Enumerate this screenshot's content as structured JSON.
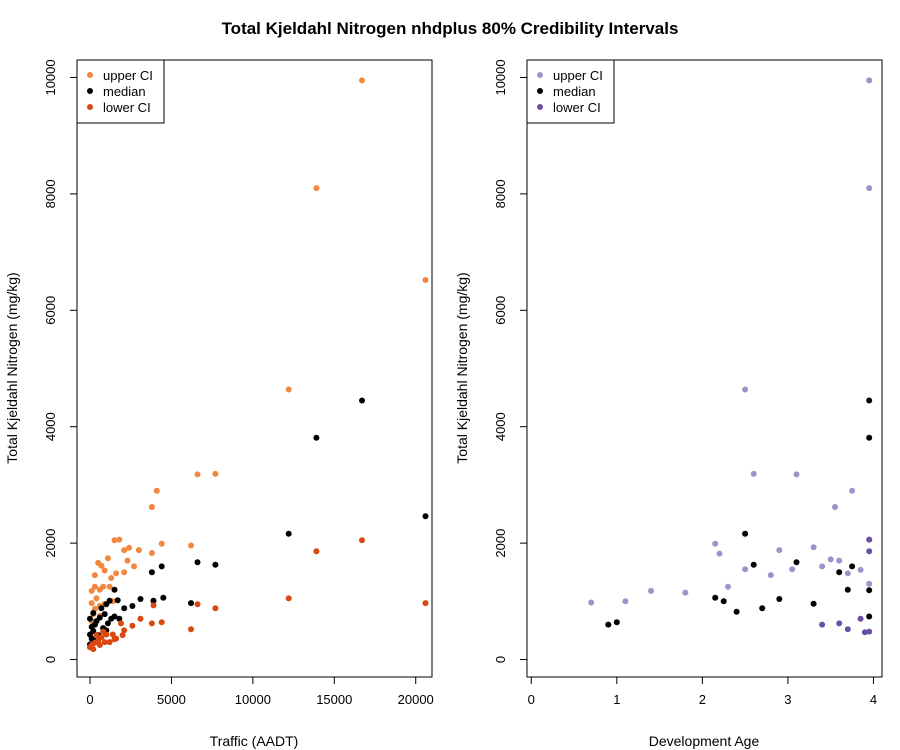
{
  "title": "Total Kjeldahl Nitrogen nhdplus 80% Credibility Intervals",
  "chart_data": [
    {
      "type": "scatter",
      "xlabel": "Traffic (AADT)",
      "ylabel": "Total Kjeldahl Nitrogen (mg/kg)",
      "xlim": [
        -800,
        21000
      ],
      "ylim": [
        -300,
        10300
      ],
      "xticks": [
        0,
        5000,
        10000,
        15000,
        20000
      ],
      "xtick_labels": [
        "0",
        "5000",
        "10000",
        "15000",
        "20000"
      ],
      "yticks": [
        0,
        2000,
        4000,
        6000,
        8000,
        10000
      ],
      "ytick_labels": [
        "0",
        "2000",
        "4000",
        "6000",
        "8000",
        "10000"
      ],
      "grid": false,
      "legend_position": "top-left",
      "series": [
        {
          "name": "upper CI",
          "color": "#f4873f",
          "points": [
            [
              16700,
              9950
            ],
            [
              13900,
              8100
            ],
            [
              20600,
              6520
            ],
            [
              12200,
              4640
            ],
            [
              7700,
              3190
            ],
            [
              6600,
              3180
            ],
            [
              4100,
              2900
            ],
            [
              3800,
              2620
            ],
            [
              4400,
              1990
            ],
            [
              6200,
              1960
            ],
            [
              3800,
              1830
            ],
            [
              3000,
              1880
            ],
            [
              2400,
              1920
            ],
            [
              2100,
              1880
            ],
            [
              1800,
              2060
            ],
            [
              1500,
              2050
            ],
            [
              2300,
              1700
            ],
            [
              2700,
              1600
            ],
            [
              2100,
              1500
            ],
            [
              1600,
              1480
            ],
            [
              1300,
              1400
            ],
            [
              900,
              1530
            ],
            [
              1100,
              1740
            ],
            [
              700,
              1610
            ],
            [
              500,
              1660
            ],
            [
              300,
              1450
            ],
            [
              800,
              1250
            ],
            [
              1200,
              1250
            ],
            [
              600,
              1200
            ],
            [
              300,
              1250
            ],
            [
              100,
              1180
            ],
            [
              400,
              1050
            ],
            [
              100,
              970
            ],
            [
              600,
              920
            ],
            [
              300,
              870
            ],
            [
              900,
              960
            ],
            [
              1400,
              1000
            ],
            [
              200,
              780
            ],
            [
              600,
              750
            ],
            [
              100,
              660
            ]
          ]
        },
        {
          "name": "median",
          "color": "#000000",
          "points": [
            [
              16700,
              4450
            ],
            [
              13900,
              3810
            ],
            [
              20600,
              2460
            ],
            [
              12200,
              2160
            ],
            [
              6600,
              1670
            ],
            [
              7700,
              1630
            ],
            [
              4400,
              1600
            ],
            [
              3800,
              1500
            ],
            [
              3900,
              1010
            ],
            [
              4500,
              1060
            ],
            [
              6200,
              970
            ],
            [
              3100,
              1040
            ],
            [
              2600,
              920
            ],
            [
              2100,
              880
            ],
            [
              1700,
              1020
            ],
            [
              1500,
              1200
            ],
            [
              1200,
              1010
            ],
            [
              1000,
              950
            ],
            [
              700,
              880
            ],
            [
              900,
              780
            ],
            [
              600,
              720
            ],
            [
              400,
              660
            ],
            [
              300,
              600
            ],
            [
              100,
              560
            ],
            [
              200,
              490
            ],
            [
              0,
              430
            ],
            [
              100,
              360
            ],
            [
              300,
              320
            ],
            [
              500,
              420
            ],
            [
              800,
              540
            ],
            [
              1100,
              620
            ],
            [
              1300,
              700
            ],
            [
              1500,
              740
            ],
            [
              1800,
              700
            ],
            [
              0,
              260
            ],
            [
              200,
              800
            ],
            [
              0,
              700
            ],
            [
              1000,
              500
            ]
          ]
        },
        {
          "name": "lower CI",
          "color": "#d9480f",
          "points": [
            [
              16700,
              2050
            ],
            [
              13900,
              1860
            ],
            [
              20600,
              970
            ],
            [
              12200,
              1050
            ],
            [
              7700,
              880
            ],
            [
              6600,
              950
            ],
            [
              6200,
              520
            ],
            [
              4400,
              640
            ],
            [
              3800,
              620
            ],
            [
              3900,
              930
            ],
            [
              3100,
              700
            ],
            [
              2600,
              580
            ],
            [
              2100,
              500
            ],
            [
              1600,
              360
            ],
            [
              1900,
              620
            ],
            [
              2000,
              420
            ],
            [
              1400,
              430
            ],
            [
              1000,
              430
            ],
            [
              700,
              380
            ],
            [
              500,
              320
            ],
            [
              300,
              290
            ],
            [
              100,
              250
            ],
            [
              0,
              210
            ],
            [
              200,
              180
            ],
            [
              600,
              250
            ],
            [
              900,
              300
            ],
            [
              1200,
              300
            ],
            [
              1500,
              350
            ],
            [
              400,
              420
            ],
            [
              800,
              480
            ]
          ]
        }
      ]
    },
    {
      "type": "scatter",
      "xlabel": "Development Age",
      "ylabel": "Total Kjeldahl Nitrogen (mg/kg)",
      "xlim": [
        -0.05,
        4.1
      ],
      "ylim": [
        -300,
        10300
      ],
      "xticks": [
        0,
        1,
        2,
        3,
        4
      ],
      "xtick_labels": [
        "0",
        "1",
        "2",
        "3",
        "4"
      ],
      "yticks": [
        0,
        2000,
        4000,
        6000,
        8000,
        10000
      ],
      "ytick_labels": [
        "0",
        "2000",
        "4000",
        "6000",
        "8000",
        "10000"
      ],
      "grid": false,
      "legend_position": "top-left",
      "series": [
        {
          "name": "upper CI",
          "color": "#9b93c9",
          "points": [
            [
              3.95,
              9950
            ],
            [
              3.95,
              8100
            ],
            [
              2.5,
              4640
            ],
            [
              2.6,
              3190
            ],
            [
              3.1,
              3180
            ],
            [
              3.75,
              2900
            ],
            [
              3.55,
              2620
            ],
            [
              2.15,
              1990
            ],
            [
              2.2,
              1820
            ],
            [
              2.9,
              1880
            ],
            [
              3.3,
              1930
            ],
            [
              3.5,
              1720
            ],
            [
              3.6,
              1700
            ],
            [
              3.85,
              1540
            ],
            [
              3.7,
              1480
            ],
            [
              3.95,
              2060
            ],
            [
              3.95,
              1300
            ],
            [
              3.4,
              1600
            ],
            [
              3.05,
              1550
            ],
            [
              2.8,
              1450
            ],
            [
              2.5,
              1550
            ],
            [
              2.3,
              1250
            ],
            [
              1.8,
              1150
            ],
            [
              1.4,
              1180
            ],
            [
              1.1,
              1000
            ],
            [
              0.7,
              980
            ]
          ]
        },
        {
          "name": "median",
          "color": "#000000",
          "points": [
            [
              3.95,
              4450
            ],
            [
              3.95,
              3810
            ],
            [
              2.5,
              2160
            ],
            [
              2.6,
              1630
            ],
            [
              3.1,
              1670
            ],
            [
              3.75,
              1600
            ],
            [
              3.6,
              1500
            ],
            [
              3.7,
              1200
            ],
            [
              3.95,
              1190
            ],
            [
              3.95,
              740
            ],
            [
              2.15,
              1060
            ],
            [
              2.25,
              1000
            ],
            [
              2.9,
              1040
            ],
            [
              3.3,
              960
            ],
            [
              2.4,
              820
            ],
            [
              2.7,
              880
            ],
            [
              1.0,
              640
            ],
            [
              0.9,
              600
            ]
          ]
        },
        {
          "name": "lower CI",
          "color": "#6a4fa3",
          "points": [
            [
              3.95,
              2060
            ],
            [
              3.95,
              1860
            ],
            [
              3.95,
              480
            ],
            [
              3.9,
              470
            ],
            [
              3.7,
              520
            ],
            [
              3.4,
              600
            ],
            [
              3.6,
              620
            ],
            [
              3.85,
              700
            ]
          ]
        }
      ]
    }
  ]
}
